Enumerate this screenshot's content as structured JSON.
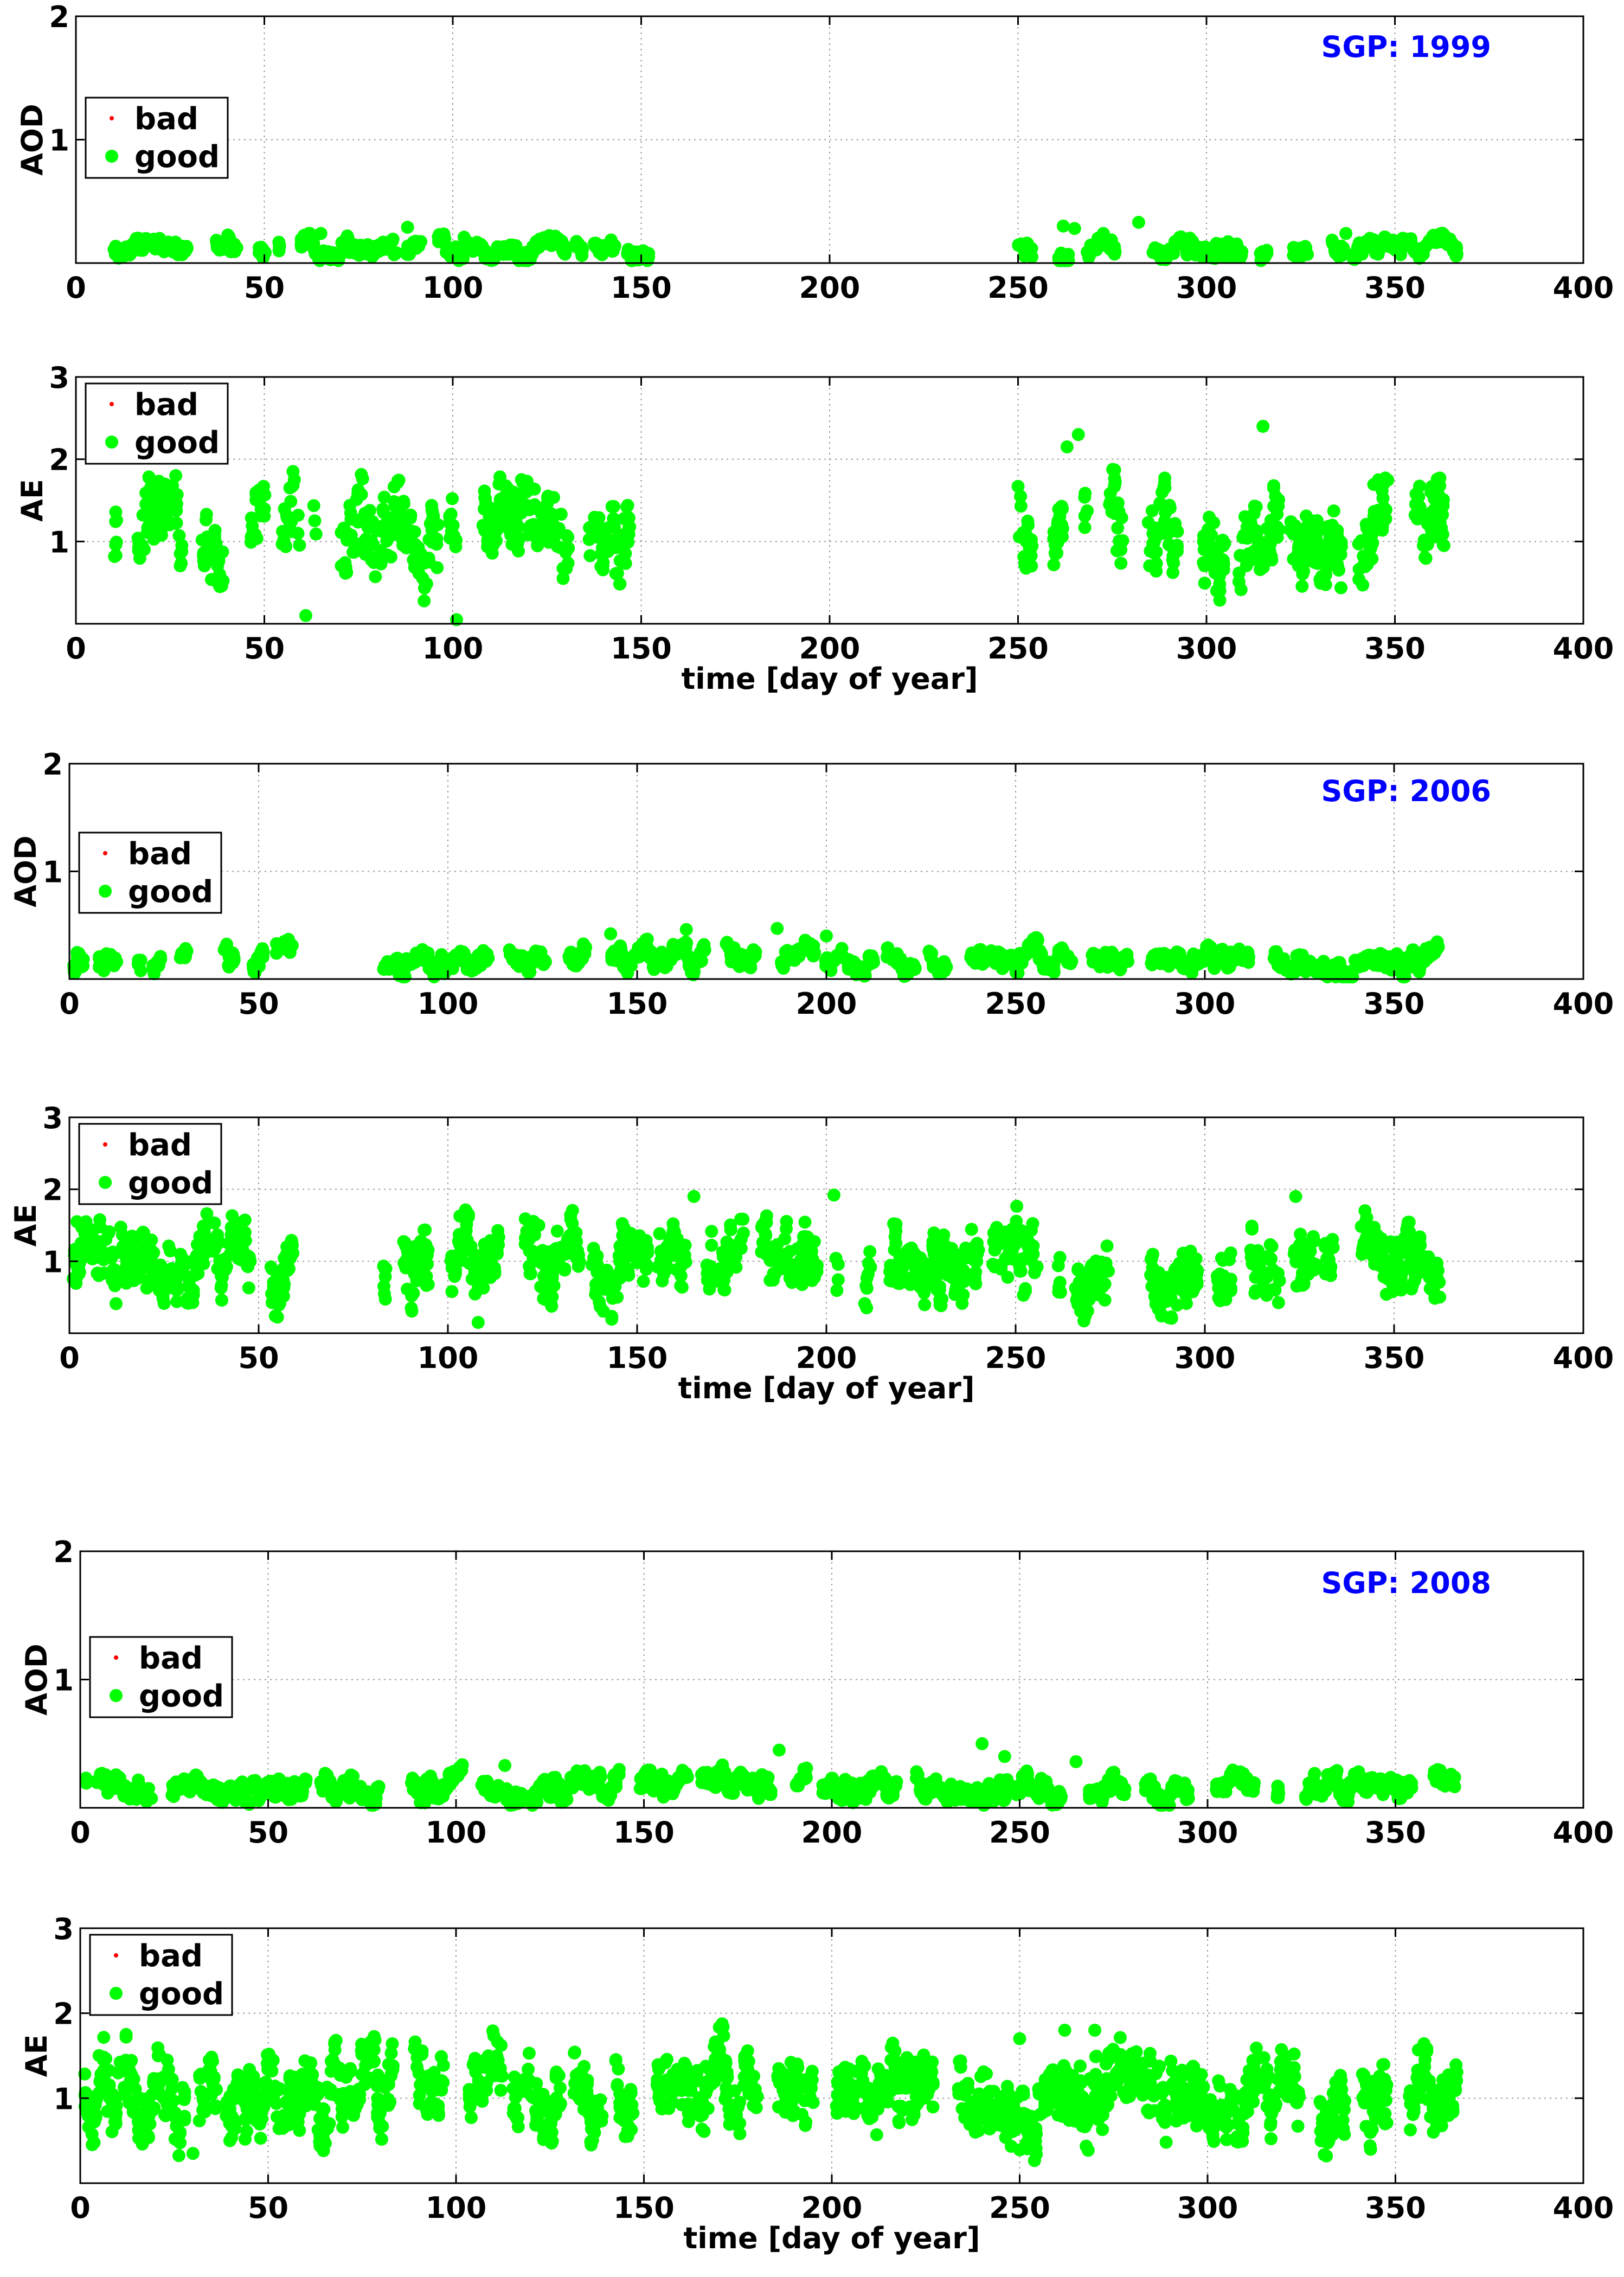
{
  "chart_data": [
    {
      "type": "scatter",
      "title": "SGP: 1999",
      "xlabel": "",
      "ylabel": "AOD",
      "xlim": [
        0,
        400
      ],
      "ylim": [
        0,
        2
      ],
      "xticks": [
        "0",
        "50",
        "100",
        "150",
        "200",
        "250",
        "300",
        "350",
        "400"
      ],
      "yticks": [
        "1",
        "2"
      ],
      "grid": true,
      "legend_position": "left",
      "legend": [
        "bad",
        "good"
      ],
      "series": [
        {
          "name": "bad",
          "color": "#ff0000",
          "points": []
        },
        {
          "name": "good",
          "color": "#00ff00",
          "segments": [
            [
              10,
              152
            ],
            [
              250,
              366
            ]
          ],
          "mean": 0.12,
          "amplitude": 0.06,
          "spikes": [
            [
              65,
              0.24
            ],
            [
              88,
              0.29
            ],
            [
              103,
              0.21
            ],
            [
              262,
              0.3
            ],
            [
              265,
              0.28
            ],
            [
              282,
              0.33
            ],
            [
              337,
              0.24
            ]
          ],
          "scatter": 0.04
        }
      ],
      "title_color": "#0000ff"
    },
    {
      "type": "scatter",
      "title": "",
      "xlabel": "time [day of year]",
      "ylabel": "AE",
      "xlim": [
        0,
        400
      ],
      "ylim": [
        0,
        3
      ],
      "xticks": [
        "0",
        "50",
        "100",
        "150",
        "200",
        "250",
        "300",
        "350",
        "400"
      ],
      "yticks": [
        "1",
        "2",
        "3"
      ],
      "grid": true,
      "legend_position": "top-left",
      "legend": [
        "bad",
        "good"
      ],
      "series": [
        {
          "name": "bad",
          "color": "#ff0000",
          "points": []
        },
        {
          "name": "good",
          "color": "#00ff00",
          "segments": [
            [
              10,
              152
            ],
            [
              250,
              366
            ]
          ],
          "mean": 1.1,
          "amplitude": 0.35,
          "spikes": [
            [
              101,
              0.05
            ],
            [
              61,
              0.1
            ],
            [
              263,
              2.15
            ],
            [
              266,
              2.3
            ],
            [
              315,
              2.4
            ],
            [
              250,
              1.67
            ]
          ],
          "scatter": 0.3
        }
      ]
    },
    {
      "type": "scatter",
      "title": "SGP: 2006",
      "xlabel": "",
      "ylabel": "AOD",
      "xlim": [
        0,
        400
      ],
      "ylim": [
        0,
        2
      ],
      "xticks": [
        "0",
        "50",
        "100",
        "150",
        "200",
        "250",
        "300",
        "350",
        "400"
      ],
      "yticks": [
        "1",
        "2"
      ],
      "grid": true,
      "legend_position": "left",
      "legend": [
        "bad",
        "good"
      ],
      "series": [
        {
          "name": "bad",
          "color": "#ff0000",
          "points": []
        },
        {
          "name": "good",
          "color": "#00ff00",
          "segments": [
            [
              1,
              59
            ],
            [
              83,
              362
            ]
          ],
          "mean": 0.17,
          "amplitude": 0.09,
          "spikes": [
            [
              143,
              0.42
            ],
            [
              163,
              0.46
            ],
            [
              187,
              0.47
            ],
            [
              200,
              0.4
            ]
          ],
          "scatter": 0.05
        }
      ],
      "title_color": "#0000ff"
    },
    {
      "type": "scatter",
      "title": "",
      "xlabel": "time [day of year]",
      "ylabel": "AE",
      "xlim": [
        0,
        400
      ],
      "ylim": [
        0,
        3
      ],
      "xticks": [
        "0",
        "50",
        "100",
        "150",
        "200",
        "250",
        "300",
        "350",
        "400"
      ],
      "yticks": [
        "1",
        "2",
        "3"
      ],
      "grid": true,
      "legend_position": "top-left",
      "legend": [
        "bad",
        "good"
      ],
      "series": [
        {
          "name": "bad",
          "color": "#ff0000",
          "points": []
        },
        {
          "name": "good",
          "color": "#00ff00",
          "segments": [
            [
              1,
              59
            ],
            [
              83,
              362
            ]
          ],
          "mean": 1.05,
          "amplitude": 0.35,
          "spikes": [
            [
              108,
              0.15
            ],
            [
              165,
              1.9
            ],
            [
              202,
              1.92
            ],
            [
              324,
              1.9
            ],
            [
              2,
              1.55
            ]
          ],
          "scatter": 0.3
        }
      ]
    },
    {
      "type": "scatter",
      "title": "SGP: 2008",
      "xlabel": "",
      "ylabel": "AOD",
      "xlim": [
        0,
        400
      ],
      "ylim": [
        0,
        2
      ],
      "xticks": [
        "0",
        "50",
        "100",
        "150",
        "200",
        "250",
        "300",
        "350",
        "400"
      ],
      "yticks": [
        "1",
        "2"
      ],
      "grid": true,
      "legend_position": "left",
      "legend": [
        "bad",
        "good"
      ],
      "series": [
        {
          "name": "bad",
          "color": "#ff0000",
          "points": []
        },
        {
          "name": "good",
          "color": "#00ff00",
          "segments": [
            [
              1,
              366
            ]
          ],
          "mean": 0.16,
          "amplitude": 0.08,
          "spikes": [
            [
              186,
              0.45
            ],
            [
              240,
              0.5
            ],
            [
              246,
              0.4
            ],
            [
              265,
              0.36
            ],
            [
              113,
              0.33
            ]
          ],
          "scatter": 0.05
        }
      ],
      "title_color": "#0000ff"
    },
    {
      "type": "scatter",
      "title": "",
      "xlabel": "time [day of year]",
      "ylabel": "AE",
      "xlim": [
        0,
        400
      ],
      "ylim": [
        0,
        3
      ],
      "xticks": [
        "0",
        "50",
        "100",
        "150",
        "200",
        "250",
        "300",
        "350",
        "400"
      ],
      "yticks": [
        "1",
        "2",
        "3"
      ],
      "grid": true,
      "legend_position": "top-left",
      "legend": [
        "bad",
        "good"
      ],
      "series": [
        {
          "name": "bad",
          "color": "#ff0000",
          "points": []
        },
        {
          "name": "good",
          "color": "#00ff00",
          "segments": [
            [
              1,
              366
            ]
          ],
          "mean": 1.05,
          "amplitude": 0.3,
          "spikes": [
            [
              30,
              0.35
            ],
            [
              262,
              1.8
            ],
            [
              270,
              1.8
            ],
            [
              250,
              1.7
            ]
          ],
          "scatter": 0.28
        }
      ]
    }
  ]
}
